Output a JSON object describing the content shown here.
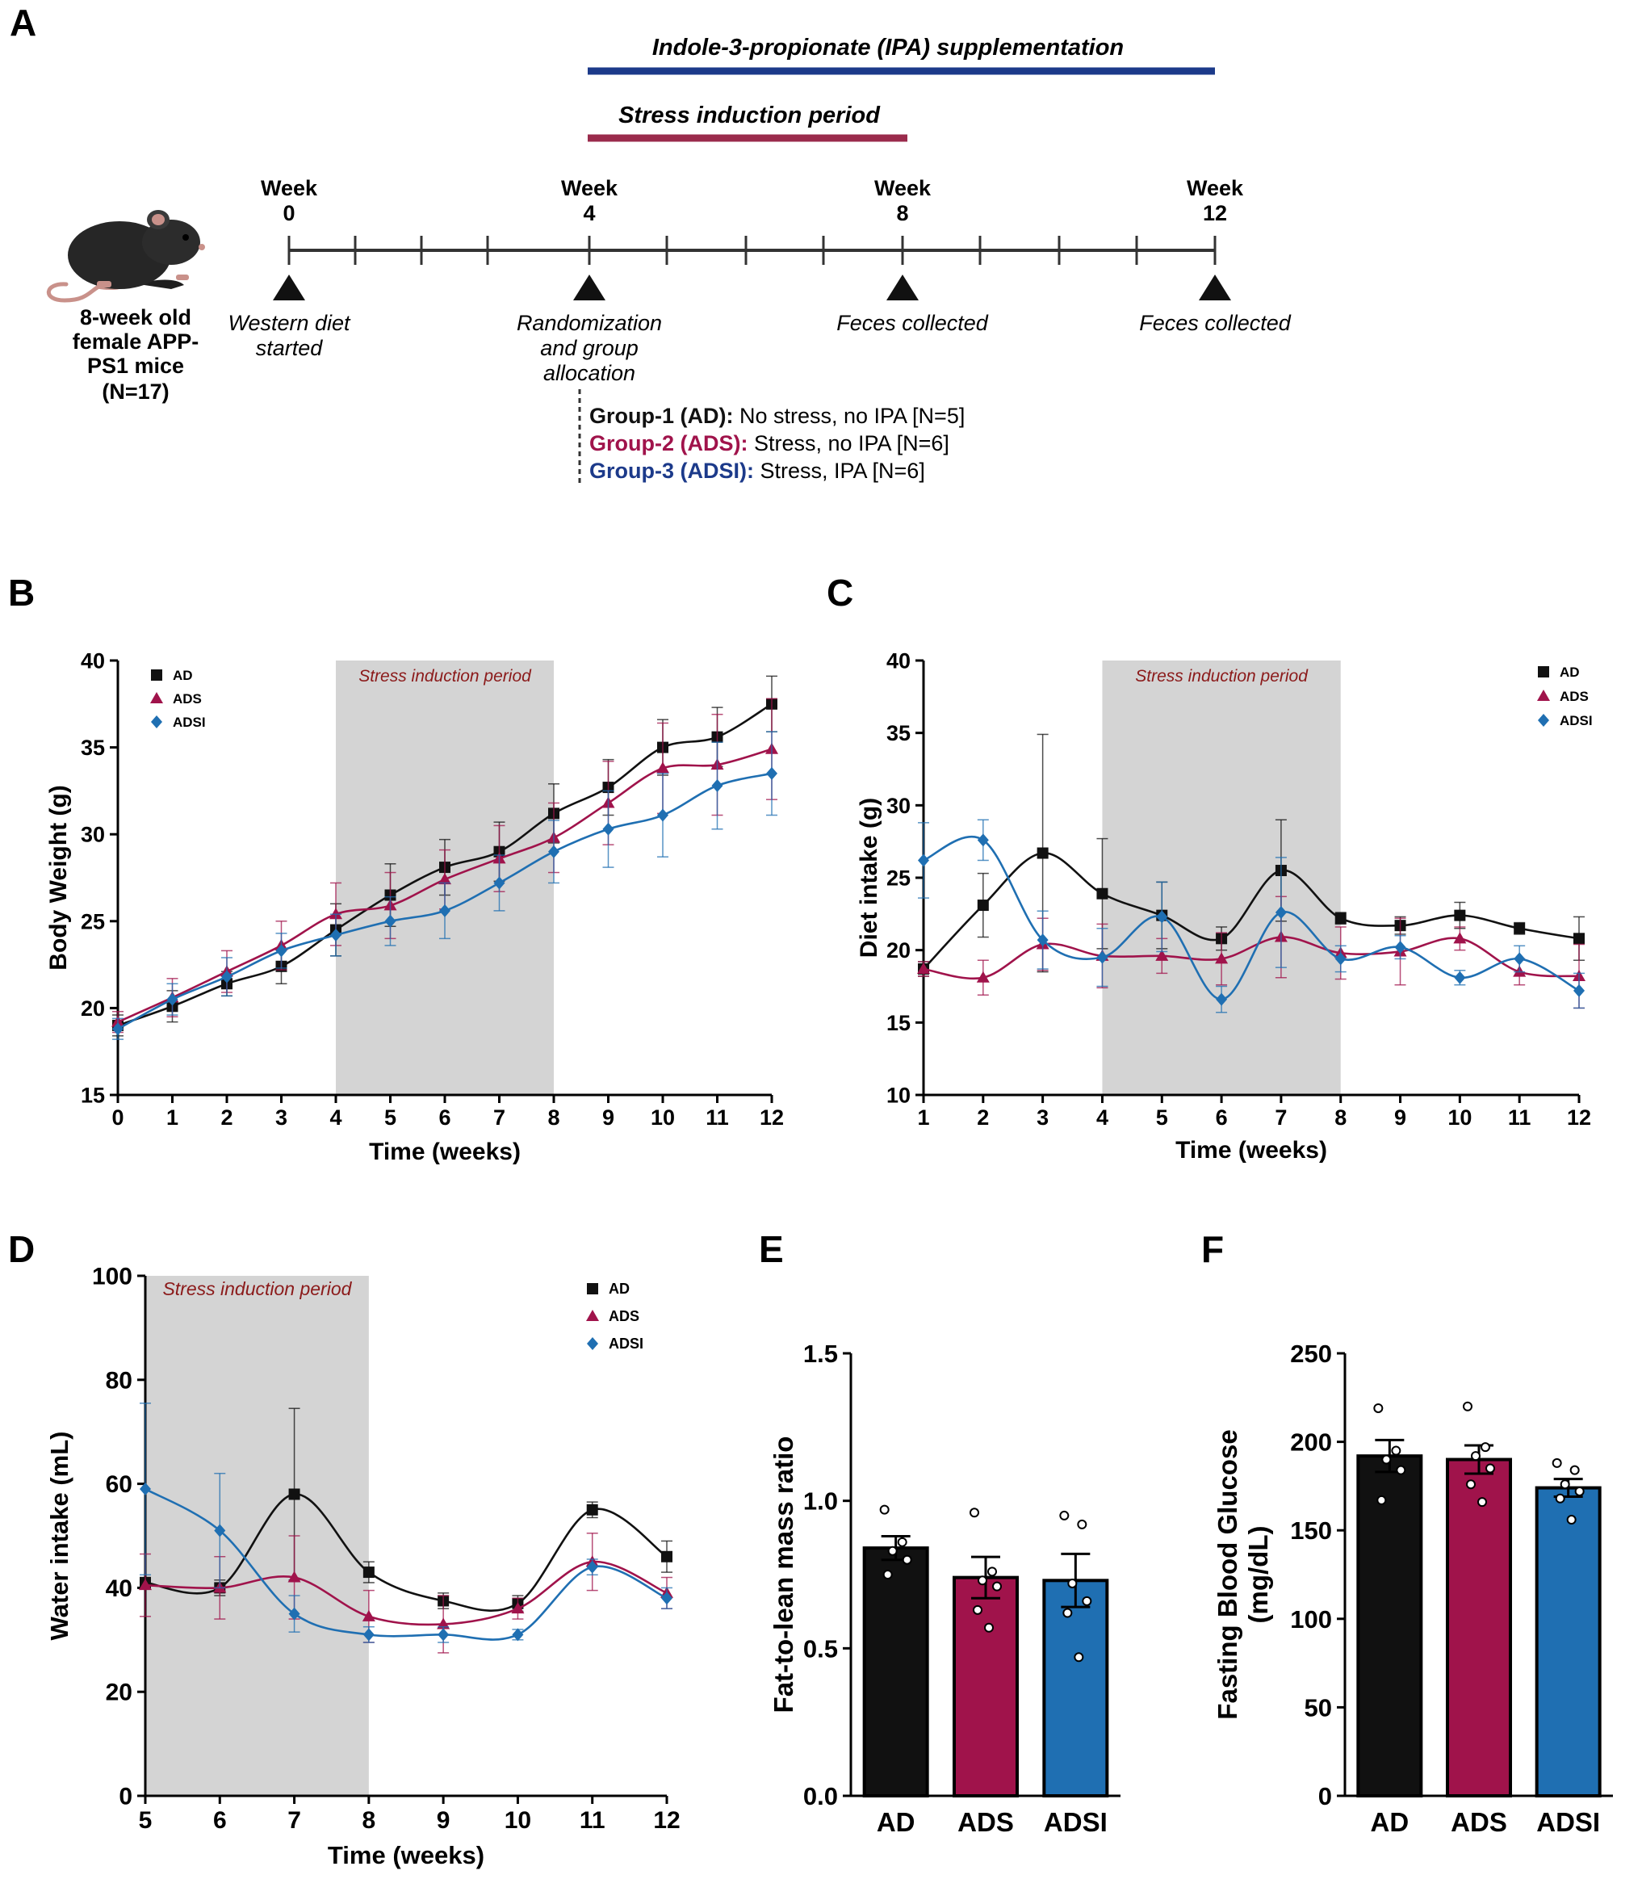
{
  "colors": {
    "AD": "#111111",
    "ADS": "#a0134b",
    "ADSI": "#1f6fb2",
    "shade": "#d4d4d4",
    "stressText": "#8b1a1a",
    "ipaBar": "#1c3a8a",
    "stressBar": "#9a2b4c",
    "ipaText": "#1c3a8a"
  },
  "panelA": {
    "letter": "A",
    "ipa_title": "Indole-3-propionate (IPA) supplementation",
    "stress_title": "Stress induction period",
    "mouse_label": [
      "8-week old",
      "female APP-",
      "PS1 mice",
      "(N=17)"
    ],
    "weeks": [
      {
        "word": "Week",
        "num": "0",
        "event": [
          "Western diet",
          "started"
        ]
      },
      {
        "word": "Week",
        "num": "4",
        "event": [
          "Randomization",
          "and group",
          "allocation"
        ]
      },
      {
        "word": "Week",
        "num": "8",
        "event": [
          "Feces collected"
        ]
      },
      {
        "word": "Week",
        "num": "12",
        "event": [
          "Feces collected"
        ]
      }
    ],
    "groups": [
      {
        "bold": "Group-1 (AD):",
        "rest": " No stress, no IPA [N=5]",
        "color": "#111111"
      },
      {
        "bold": "Group-2 (ADS):",
        "rest": " Stress, no IPA [N=6]",
        "color": "#a0134b"
      },
      {
        "bold": "Group-3 (ADSI):",
        "rest": " Stress, IPA [N=6]",
        "color": "#1c3a8a"
      }
    ]
  },
  "chart_data": [
    {
      "panel": "B",
      "type": "line",
      "xlabel": "Time (weeks)",
      "ylabel": "Body Weight (g)",
      "xlim": [
        0,
        12
      ],
      "ylim": [
        15,
        40
      ],
      "xticks": [
        0,
        1,
        2,
        3,
        4,
        5,
        6,
        7,
        8,
        9,
        10,
        11,
        12
      ],
      "yticks": [
        15,
        20,
        25,
        30,
        35,
        40
      ],
      "shade": [
        4,
        8
      ],
      "shade_label": "Stress induction period",
      "legend": "top-left",
      "x": [
        0,
        1,
        2,
        3,
        4,
        5,
        6,
        7,
        8,
        9,
        10,
        11,
        12
      ],
      "series": [
        {
          "name": "AD",
          "marker": "square",
          "values": [
            19.0,
            20.1,
            21.4,
            22.4,
            24.5,
            26.5,
            28.1,
            29.0,
            31.2,
            32.7,
            35.0,
            35.6,
            37.5
          ],
          "err": [
            0.6,
            0.9,
            0.7,
            1.0,
            1.5,
            1.8,
            1.6,
            1.7,
            1.7,
            1.6,
            1.6,
            1.7,
            1.6
          ]
        },
        {
          "name": "ADS",
          "marker": "triangle",
          "values": [
            19.2,
            20.6,
            22.1,
            23.6,
            25.4,
            25.9,
            27.4,
            28.6,
            29.8,
            31.8,
            33.8,
            34.0,
            34.9
          ],
          "err": [
            0.6,
            1.1,
            1.2,
            1.4,
            1.8,
            1.9,
            1.7,
            1.9,
            2.0,
            2.4,
            2.6,
            2.9,
            2.9
          ]
        },
        {
          "name": "ADSI",
          "marker": "diamond",
          "values": [
            18.8,
            20.5,
            21.8,
            23.3,
            24.2,
            25.0,
            25.6,
            27.2,
            29.0,
            30.3,
            31.1,
            32.8,
            33.5
          ],
          "err": [
            0.6,
            0.9,
            1.1,
            1.0,
            1.2,
            1.4,
            1.6,
            1.6,
            1.8,
            2.2,
            2.4,
            2.5,
            2.4
          ]
        }
      ]
    },
    {
      "panel": "C",
      "type": "line",
      "xlabel": "Time (weeks)",
      "ylabel": "Diet intake (g)",
      "xlim": [
        1,
        12
      ],
      "ylim": [
        10,
        40
      ],
      "xticks": [
        1,
        2,
        3,
        4,
        5,
        6,
        7,
        8,
        9,
        10,
        11,
        12
      ],
      "yticks": [
        10,
        15,
        20,
        25,
        30,
        35,
        40
      ],
      "shade": [
        4,
        8
      ],
      "shade_label": "Stress induction period",
      "legend": "top-right",
      "x": [
        1,
        2,
        3,
        4,
        5,
        6,
        7,
        8,
        9,
        10,
        11,
        12
      ],
      "series": [
        {
          "name": "AD",
          "marker": "square",
          "values": [
            18.7,
            23.1,
            26.7,
            23.9,
            22.4,
            20.8,
            25.5,
            22.2,
            21.7,
            22.4,
            21.5,
            20.8
          ],
          "err": [
            0.5,
            2.2,
            8.2,
            3.8,
            2.3,
            0.8,
            3.5,
            0.4,
            0.6,
            0.9,
            0.4,
            1.5
          ]
        },
        {
          "name": "ADS",
          "marker": "triangle",
          "values": [
            18.7,
            18.1,
            20.4,
            19.6,
            19.6,
            19.4,
            20.9,
            19.8,
            19.9,
            20.8,
            18.5,
            18.2
          ],
          "err": [
            0.5,
            1.2,
            1.8,
            2.2,
            1.2,
            1.8,
            2.8,
            1.8,
            2.3,
            0.8,
            0.9,
            2.2
          ]
        },
        {
          "name": "ADSI",
          "marker": "diamond",
          "values": [
            26.2,
            27.6,
            20.7,
            19.5,
            22.3,
            16.6,
            22.6,
            19.4,
            20.2,
            18.1,
            19.4,
            17.2
          ],
          "err": [
            2.6,
            1.4,
            2.0,
            2.0,
            2.4,
            0.9,
            3.8,
            0.9,
            0.8,
            0.5,
            0.9,
            1.2
          ]
        }
      ]
    },
    {
      "panel": "D",
      "type": "line",
      "xlabel": "Time (weeks)",
      "ylabel": "Water intake (mL)",
      "xlim": [
        5,
        12
      ],
      "ylim": [
        0,
        100
      ],
      "xticks": [
        5,
        6,
        7,
        8,
        9,
        10,
        11,
        12
      ],
      "yticks": [
        0,
        20,
        40,
        60,
        80,
        100
      ],
      "shade": [
        5,
        8
      ],
      "shade_label": "Stress induction period",
      "legend": "top-right",
      "x": [
        5,
        6,
        7,
        8,
        9,
        10,
        11,
        12
      ],
      "series": [
        {
          "name": "AD",
          "marker": "square",
          "values": [
            41,
            40,
            58,
            43,
            37.5,
            37,
            55,
            46
          ],
          "err": [
            1,
            1.5,
            16.5,
            2,
            1.5,
            1.5,
            1.5,
            3
          ]
        },
        {
          "name": "ADS",
          "marker": "triangle",
          "values": [
            40.5,
            40,
            42,
            34.5,
            33,
            36,
            45,
            39
          ],
          "err": [
            6,
            6,
            8,
            5,
            5.5,
            2,
            5.5,
            3
          ]
        },
        {
          "name": "ADSI",
          "marker": "diamond",
          "values": [
            59,
            51,
            35,
            31,
            31,
            31,
            44,
            38
          ],
          "err": [
            16.5,
            11,
            3.5,
            1.5,
            1.5,
            1,
            1.5,
            2
          ]
        }
      ]
    },
    {
      "panel": "E",
      "type": "bar",
      "ylabel": "Fat-to-lean mass ratio",
      "ylim": [
        0,
        1.5
      ],
      "yticks": [
        0.0,
        0.5,
        1.0,
        1.5
      ],
      "ytick_labels": [
        "0.0",
        "0.5",
        "1.0",
        "1.5"
      ],
      "categories": [
        "AD",
        "ADS",
        "ADSI"
      ],
      "values": [
        0.84,
        0.74,
        0.73
      ],
      "err": [
        0.04,
        0.07,
        0.09
      ],
      "points": [
        [
          0.97,
          0.86,
          0.83,
          0.8,
          0.75
        ],
        [
          0.96,
          0.76,
          0.73,
          0.71,
          0.63,
          0.57
        ],
        [
          0.95,
          0.92,
          0.72,
          0.66,
          0.62,
          0.47
        ]
      ]
    },
    {
      "panel": "F",
      "type": "bar",
      "ylabel": "Fasting Blood Glucose (mg/dL)",
      "ylabel_lines": [
        "Fasting Blood Glucose",
        "(mg/dL)"
      ],
      "ylim": [
        0,
        250
      ],
      "yticks": [
        0,
        50,
        100,
        150,
        200,
        250
      ],
      "ytick_labels": [
        "0",
        "50",
        "100",
        "150",
        "200",
        "250"
      ],
      "categories": [
        "AD",
        "ADS",
        "ADSI"
      ],
      "values": [
        192,
        190,
        174
      ],
      "err": [
        9,
        8,
        5
      ],
      "points": [
        [
          219,
          195,
          190,
          184,
          167
        ],
        [
          220,
          197,
          192,
          185,
          176,
          166
        ],
        [
          188,
          184,
          176,
          172,
          168,
          156
        ]
      ]
    }
  ]
}
